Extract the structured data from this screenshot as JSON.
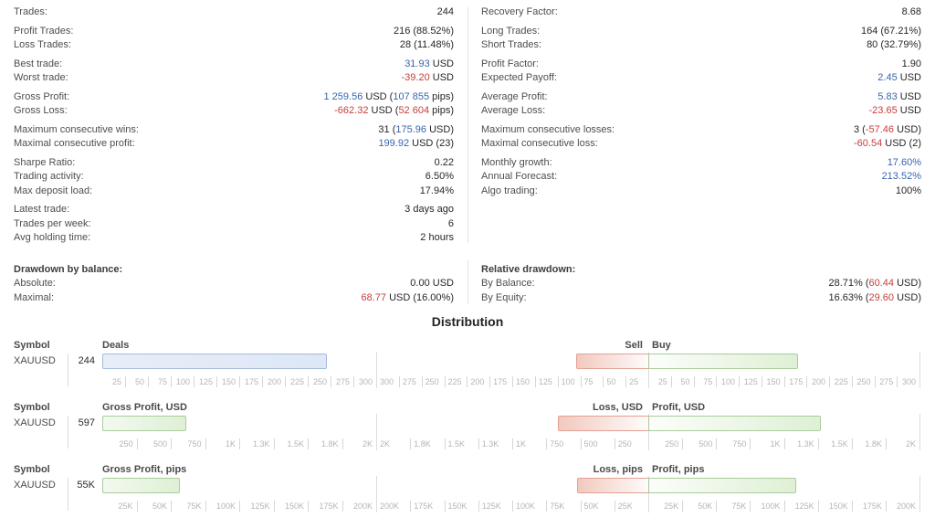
{
  "colors": {
    "accent_blue": "#3a64ae",
    "accent_red": "#c5403c",
    "bar_blue_fill": "#dde7f5",
    "bar_blue_border": "#a6b9dc",
    "bar_green_fill": "#def0d5",
    "bar_green_border": "#a9cd9b",
    "bar_red_fill": "#f2c9be",
    "bar_red_border": "#e3a195"
  },
  "stats": {
    "left": [
      {
        "label": "Trades:",
        "parts": [
          {
            "t": "244"
          }
        ]
      },
      {
        "label": "Profit Trades:",
        "parts": [
          {
            "t": "216 (88.52%)"
          }
        ],
        "gap": 1
      },
      {
        "label": "Loss Trades:",
        "parts": [
          {
            "t": "28 (11.48%)"
          }
        ]
      },
      {
        "label": "Best trade:",
        "parts": [
          {
            "t": "31.93",
            "c": "blue"
          },
          {
            "t": " USD"
          }
        ],
        "gap": 1
      },
      {
        "label": "Worst trade:",
        "parts": [
          {
            "t": "-39.20",
            "c": "red"
          },
          {
            "t": " USD"
          }
        ]
      },
      {
        "label": "Gross Profit:",
        "parts": [
          {
            "t": "1 259.56",
            "c": "blue"
          },
          {
            "t": " USD ("
          },
          {
            "t": "107 855",
            "c": "blue"
          },
          {
            "t": " pips)"
          }
        ],
        "gap": 1
      },
      {
        "label": "Gross Loss:",
        "parts": [
          {
            "t": "-662.32",
            "c": "red"
          },
          {
            "t": " USD ("
          },
          {
            "t": "52 604",
            "c": "red"
          },
          {
            "t": " pips)"
          }
        ]
      },
      {
        "label": "Maximum consecutive wins:",
        "parts": [
          {
            "t": "31 ("
          },
          {
            "t": "175.96",
            "c": "blue"
          },
          {
            "t": " USD)"
          }
        ],
        "gap": 1
      },
      {
        "label": "Maximal consecutive profit:",
        "parts": [
          {
            "t": "199.92",
            "c": "blue"
          },
          {
            "t": " USD (23)"
          }
        ]
      },
      {
        "label": "Sharpe Ratio:",
        "parts": [
          {
            "t": "0.22"
          }
        ],
        "gap": 1
      },
      {
        "label": "Trading activity:",
        "parts": [
          {
            "t": "6.50%"
          }
        ]
      },
      {
        "label": "Max deposit load:",
        "parts": [
          {
            "t": "17.94%"
          }
        ]
      },
      {
        "label": "Latest trade:",
        "parts": [
          {
            "t": "3 days ago"
          }
        ],
        "gap": 1
      },
      {
        "label": "Trades per week:",
        "parts": [
          {
            "t": "6"
          }
        ]
      },
      {
        "label": "Avg holding time:",
        "parts": [
          {
            "t": "2 hours"
          }
        ]
      },
      {
        "label": "Drawdown by balance:",
        "bold": true,
        "parts": [],
        "gap": 2
      },
      {
        "label": "Absolute:",
        "parts": [
          {
            "t": "0.00 USD"
          }
        ]
      },
      {
        "label": "Maximal:",
        "parts": [
          {
            "t": "68.77",
            "c": "red"
          },
          {
            "t": " USD (16.00%)"
          }
        ]
      }
    ],
    "right": [
      {
        "label": "Recovery Factor:",
        "parts": [
          {
            "t": "8.68"
          }
        ]
      },
      {
        "label": "Long Trades:",
        "parts": [
          {
            "t": "164 (67.21%)"
          }
        ],
        "gap": 1
      },
      {
        "label": "Short Trades:",
        "parts": [
          {
            "t": "80 (32.79%)"
          }
        ]
      },
      {
        "label": "Profit Factor:",
        "parts": [
          {
            "t": "1.90"
          }
        ],
        "gap": 1
      },
      {
        "label": "Expected Payoff:",
        "parts": [
          {
            "t": "2.45",
            "c": "blue"
          },
          {
            "t": " USD"
          }
        ]
      },
      {
        "label": "Average Profit:",
        "parts": [
          {
            "t": "5.83",
            "c": "blue"
          },
          {
            "t": " USD"
          }
        ],
        "gap": 1
      },
      {
        "label": "Average Loss:",
        "parts": [
          {
            "t": "-23.65",
            "c": "red"
          },
          {
            "t": " USD"
          }
        ]
      },
      {
        "label": "Maximum consecutive losses:",
        "parts": [
          {
            "t": "3 ("
          },
          {
            "t": "-57.46",
            "c": "red"
          },
          {
            "t": " USD)"
          }
        ],
        "gap": 1
      },
      {
        "label": "Maximal consecutive loss:",
        "parts": [
          {
            "t": "-60.54",
            "c": "red"
          },
          {
            "t": " USD (2)"
          }
        ]
      },
      {
        "label": "Monthly growth:",
        "parts": [
          {
            "t": "17.60%",
            "c": "blue"
          }
        ],
        "gap": 1
      },
      {
        "label": "Annual Forecast:",
        "parts": [
          {
            "t": "213.52%",
            "c": "blue"
          }
        ]
      },
      {
        "label": "Algo trading:",
        "parts": [
          {
            "t": "100%"
          }
        ]
      },
      {
        "spacer": 51.5
      },
      {
        "label": "Relative drawdown:",
        "bold": true,
        "parts": [],
        "gap": 2
      },
      {
        "label": "By Balance:",
        "parts": [
          {
            "t": "28.71% ("
          },
          {
            "t": "60.44",
            "c": "red"
          },
          {
            "t": " USD)"
          }
        ]
      },
      {
        "label": "By Equity:",
        "parts": [
          {
            "t": "16.63% ("
          },
          {
            "t": "29.60",
            "c": "red"
          },
          {
            "t": " USD)"
          }
        ]
      }
    ]
  },
  "distribution": {
    "title": "Distribution",
    "symbol_header": "Symbol",
    "rows": [
      {
        "symbol": "XAUUSD",
        "value_label": "244",
        "left_chart": {
          "title": "Deals",
          "value": 244,
          "max": 300,
          "style": "blue",
          "ticks": [
            "25",
            "50",
            "75",
            "100",
            "125",
            "150",
            "175",
            "200",
            "225",
            "250",
            "275",
            "300"
          ]
        },
        "right_chart": {
          "left_title": "Sell",
          "right_title": "Buy",
          "left_value": 80,
          "right_value": 164,
          "max": 300,
          "ticks": [
            "25",
            "50",
            "75",
            "100",
            "125",
            "150",
            "175",
            "200",
            "225",
            "250",
            "275",
            "300"
          ]
        }
      },
      {
        "symbol": "XAUUSD",
        "value_label": "597",
        "left_chart": {
          "title": "Gross Profit, USD",
          "value": 597,
          "max": 2000,
          "style": "green",
          "ticks": [
            "250",
            "500",
            "750",
            "1K",
            "1.3K",
            "1.5K",
            "1.8K",
            "2K"
          ]
        },
        "right_chart": {
          "left_title": "Loss, USD",
          "right_title": "Profit, USD",
          "left_value": 662,
          "right_value": 1260,
          "max": 2000,
          "ticks": [
            "250",
            "500",
            "750",
            "1K",
            "1.3K",
            "1.5K",
            "1.8K",
            "2K"
          ]
        }
      },
      {
        "symbol": "XAUUSD",
        "value_label": "55K",
        "left_chart": {
          "title": "Gross Profit, pips",
          "value": 55251,
          "max": 200000,
          "style": "green",
          "ticks": [
            "25K",
            "50K",
            "75K",
            "100K",
            "125K",
            "150K",
            "175K",
            "200K"
          ]
        },
        "right_chart": {
          "left_title": "Loss, pips",
          "right_title": "Profit, pips",
          "left_value": 52604,
          "right_value": 107855,
          "max": 200000,
          "ticks": [
            "25K",
            "50K",
            "75K",
            "100K",
            "125K",
            "150K",
            "175K",
            "200K"
          ]
        }
      }
    ]
  }
}
